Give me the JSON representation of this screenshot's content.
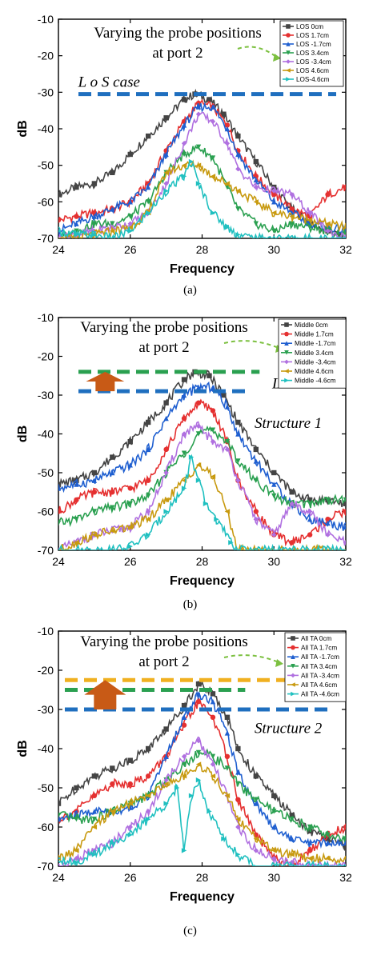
{
  "chart_data": [
    {
      "type": "line",
      "caption": "(a)",
      "xlabel": "Frequency",
      "ylabel": "dB",
      "xlim": [
        24,
        32
      ],
      "ylim": [
        -70,
        -10
      ],
      "xticks": [
        24,
        26,
        28,
        30,
        32
      ],
      "yticks": [
        -10,
        -20,
        -30,
        -40,
        -50,
        -60,
        -70
      ],
      "grid": false,
      "legend_position": "top-right",
      "annotation": "Varying the probe positions\nat port 2",
      "extra_labels": [
        "L o S  case"
      ],
      "reference_lines": [
        {
          "y": -30.5,
          "color": "#1f6fbf"
        }
      ],
      "arrow_box_y": null,
      "series": [
        {
          "name": "LOS 0cm",
          "color": "#444444",
          "marker": "square",
          "x": [
            24,
            24.5,
            25,
            25.5,
            26,
            26.5,
            27,
            27.5,
            27.8,
            28.2,
            28.6,
            29,
            29.5,
            30,
            30.5,
            31,
            31.5,
            32
          ],
          "y": [
            -58,
            -56,
            -55,
            -52,
            -47,
            -42,
            -37,
            -32,
            -30.5,
            -32,
            -36,
            -42,
            -49,
            -56,
            -62,
            -66,
            -68,
            -70
          ]
        },
        {
          "name": "LOS 1.7cm",
          "color": "#e53030",
          "marker": "circle",
          "x": [
            24,
            24.5,
            25,
            25.5,
            26,
            26.5,
            27,
            27.5,
            27.9,
            28.3,
            28.7,
            29,
            29.5,
            30,
            30.5,
            31,
            31.5,
            32
          ],
          "y": [
            -65,
            -64,
            -63,
            -62,
            -60,
            -55,
            -46,
            -38,
            -33,
            -34,
            -39,
            -46,
            -53,
            -58,
            -62,
            -64,
            -58,
            -56
          ]
        },
        {
          "name": "LOS -1.7cm",
          "color": "#1f5fd0",
          "marker": "triangle-up",
          "x": [
            24,
            24.5,
            25,
            25.5,
            26,
            26.5,
            27,
            27.5,
            27.9,
            28.3,
            28.7,
            29,
            29.5,
            30,
            30.5,
            31,
            31.5,
            32
          ],
          "y": [
            -68,
            -66,
            -64,
            -62,
            -60,
            -56,
            -47,
            -39,
            -34,
            -34,
            -40,
            -47,
            -54,
            -60,
            -63,
            -66,
            -67,
            -68
          ]
        },
        {
          "name": "LOS 3.4cm",
          "color": "#2aa050",
          "marker": "triangle-down",
          "x": [
            24,
            24.5,
            25,
            25.5,
            26,
            26.5,
            27,
            27.5,
            27.9,
            28.3,
            28.7,
            29,
            29.5,
            30,
            30.5,
            31,
            31.5,
            32
          ],
          "y": [
            -70,
            -68,
            -66,
            -66,
            -64,
            -60,
            -52,
            -47,
            -45,
            -48,
            -56,
            -62,
            -66,
            -68,
            -66,
            -67,
            -68,
            -69
          ]
        },
        {
          "name": "LOS -3.4cm",
          "color": "#b070e0",
          "marker": "diamond",
          "x": [
            24,
            24.5,
            25,
            25.5,
            26,
            26.5,
            27,
            27.5,
            27.9,
            28.3,
            28.7,
            29,
            29.5,
            30,
            30.5,
            31,
            31.5,
            32
          ],
          "y": [
            -70,
            -69,
            -68,
            -67,
            -66,
            -63,
            -55,
            -44,
            -36,
            -38,
            -44,
            -51,
            -56,
            -57,
            -58,
            -63,
            -68,
            -70
          ]
        },
        {
          "name": "LOS 4.6cm",
          "color": "#c89a10",
          "marker": "triangle-left",
          "x": [
            24,
            24.5,
            25,
            25.5,
            26,
            26.5,
            27,
            27.5,
            27.9,
            28.3,
            28.7,
            29,
            29.5,
            30,
            30.5,
            31,
            31.5,
            32
          ],
          "y": [
            -70,
            -70,
            -69,
            -68,
            -67,
            -63,
            -52,
            -50,
            -50,
            -53,
            -55,
            -57,
            -60,
            -63,
            -64,
            -65,
            -66,
            -67
          ]
        },
        {
          "name": "LOS-4.6cm",
          "color": "#20c0c0",
          "marker": "triangle-right",
          "x": [
            24,
            24.5,
            25,
            25.5,
            26,
            26.5,
            27,
            27.5,
            27.7,
            27.9,
            28.3,
            28.7,
            29,
            29.5,
            30,
            30.5,
            31,
            31.5,
            32
          ],
          "y": [
            -68,
            -69,
            -69,
            -70,
            -68,
            -63,
            -57,
            -53,
            -49,
            -55,
            -63,
            -67,
            -69,
            -70,
            -70,
            -70,
            -70,
            -70,
            -70
          ]
        }
      ]
    },
    {
      "type": "line",
      "caption": "(b)",
      "xlabel": "Frequency",
      "ylabel": "dB",
      "xlim": [
        24,
        32
      ],
      "ylim": [
        -70,
        -10
      ],
      "xticks": [
        24,
        26,
        28,
        30,
        32
      ],
      "yticks": [
        -10,
        -20,
        -30,
        -40,
        -50,
        -60,
        -70
      ],
      "grid": false,
      "legend_position": "top-right",
      "annotation": "Varying the probe positions\nat port 2",
      "extra_labels": [
        "L o S  case",
        "Structure 1"
      ],
      "reference_lines": [
        {
          "y": -24,
          "color": "#2aa050"
        },
        {
          "y": -29,
          "color": "#1f6fbf"
        }
      ],
      "arrow_box_y": [
        -29,
        -24
      ],
      "series": [
        {
          "name": "Middle 0cm",
          "color": "#444444",
          "marker": "square",
          "x": [
            24,
            24.5,
            25,
            25.5,
            26,
            26.5,
            27,
            27.5,
            27.8,
            28.2,
            28.6,
            29,
            29.5,
            30,
            30.5,
            31,
            31.5,
            32
          ],
          "y": [
            -53,
            -52,
            -50,
            -46,
            -42,
            -37,
            -32,
            -26,
            -24,
            -25,
            -30,
            -37,
            -44,
            -50,
            -55,
            -57,
            -57,
            -58
          ]
        },
        {
          "name": "Middle 1.7cm",
          "color": "#e53030",
          "marker": "circle",
          "x": [
            24,
            24.5,
            25,
            25.5,
            26,
            26.5,
            27,
            27.5,
            27.9,
            28.3,
            28.7,
            29,
            29.5,
            30,
            30.5,
            31,
            31.5,
            32
          ],
          "y": [
            -60,
            -57,
            -55,
            -55,
            -54,
            -52,
            -44,
            -36,
            -32,
            -34,
            -42,
            -52,
            -60,
            -66,
            -68,
            -66,
            -62,
            -60
          ]
        },
        {
          "name": "Middle -1.7cm",
          "color": "#1f5fd0",
          "marker": "triangle-up",
          "x": [
            24,
            24.5,
            25,
            25.5,
            26,
            26.5,
            27,
            27.5,
            27.9,
            28.3,
            28.7,
            29,
            29.5,
            30,
            30.5,
            31,
            31.5,
            32
          ],
          "y": [
            -54,
            -53,
            -52,
            -50,
            -48,
            -44,
            -36,
            -30,
            -28,
            -28,
            -33,
            -40,
            -47,
            -53,
            -58,
            -62,
            -63,
            -64
          ]
        },
        {
          "name": "Middle 3.4cm",
          "color": "#2aa050",
          "marker": "triangle-down",
          "x": [
            24,
            24.5,
            25,
            25.5,
            26,
            26.5,
            27,
            27.5,
            27.9,
            28.3,
            28.7,
            29,
            29.5,
            30,
            30.5,
            31,
            31.5,
            32
          ],
          "y": [
            -63,
            -62,
            -60,
            -59,
            -58,
            -56,
            -50,
            -45,
            -40,
            -39,
            -42,
            -47,
            -52,
            -56,
            -58,
            -58,
            -57,
            -57
          ]
        },
        {
          "name": "Middle -3.4cm",
          "color": "#b070e0",
          "marker": "diamond",
          "x": [
            24,
            24.5,
            25,
            25.5,
            26,
            26.5,
            27,
            27.5,
            27.9,
            28.3,
            28.7,
            29,
            29.5,
            30,
            30.5,
            31,
            31.5,
            32
          ],
          "y": [
            -70,
            -68,
            -66,
            -65,
            -64,
            -60,
            -50,
            -40,
            -38,
            -42,
            -44,
            -52,
            -62,
            -66,
            -58,
            -60,
            -66,
            -68
          ]
        },
        {
          "name": "Middle 4.6cm",
          "color": "#c89a10",
          "marker": "triangle-left",
          "x": [
            24,
            24.5,
            25,
            25.5,
            26,
            26.5,
            27,
            27.5,
            27.9,
            28.3,
            28.7,
            29,
            29.5,
            30,
            30.5,
            31,
            31.5,
            32
          ],
          "y": [
            -70,
            -68,
            -66,
            -65,
            -64,
            -62,
            -57,
            -52,
            -48,
            -51,
            -60,
            -70,
            -70,
            -70,
            -70,
            -70,
            -70,
            -70
          ]
        },
        {
          "name": "Middle -4.6cm",
          "color": "#20c0c0",
          "marker": "triangle-right",
          "x": [
            24,
            24.5,
            25,
            25.5,
            26,
            26.5,
            27,
            27.5,
            27.7,
            27.9,
            28.1,
            28.4,
            28.8,
            29,
            29.5,
            30,
            30.5,
            31,
            31.5,
            32
          ],
          "y": [
            -70,
            -70,
            -70,
            -70,
            -69,
            -66,
            -60,
            -54,
            -46,
            -52,
            -58,
            -62,
            -68,
            -70,
            -70,
            -70,
            -70,
            -70,
            -70,
            -70
          ]
        }
      ]
    },
    {
      "type": "line",
      "caption": "(c)",
      "xlabel": "Frequency",
      "ylabel": "dB",
      "xlim": [
        24,
        32
      ],
      "ylim": [
        -70,
        -10
      ],
      "xticks": [
        24,
        26,
        28,
        30,
        32
      ],
      "yticks": [
        -10,
        -20,
        -30,
        -40,
        -50,
        -60,
        -70
      ],
      "grid": false,
      "legend_position": "top-right",
      "annotation": "Varying the probe positions\nat port 2",
      "extra_labels": [
        "Structure 2"
      ],
      "reference_lines": [
        {
          "y": -22.5,
          "color": "#f0b020"
        },
        {
          "y": -25,
          "color": "#2aa050"
        },
        {
          "y": -30,
          "color": "#1f6fbf"
        }
      ],
      "arrow_box_y": [
        -30,
        -22.5
      ],
      "series": [
        {
          "name": "All TA 0cm",
          "color": "#444444",
          "marker": "square",
          "x": [
            24,
            24.5,
            25,
            25.5,
            26,
            26.5,
            27,
            27.5,
            27.9,
            28.3,
            28.7,
            29,
            29.5,
            30,
            30.5,
            31,
            31.5,
            32
          ],
          "y": [
            -54,
            -50,
            -47,
            -45,
            -43,
            -40,
            -35,
            -29,
            -23.5,
            -26,
            -32,
            -40,
            -47,
            -52,
            -57,
            -61,
            -63,
            -65
          ]
        },
        {
          "name": "All TA 1.7cm",
          "color": "#e53030",
          "marker": "circle",
          "x": [
            24,
            24.5,
            25,
            25.5,
            26,
            26.5,
            27,
            27.5,
            27.9,
            28.3,
            28.7,
            29,
            29.5,
            30,
            30.5,
            31,
            31.5,
            32
          ],
          "y": [
            -58,
            -56,
            -52,
            -49,
            -49,
            -47,
            -42,
            -34,
            -28,
            -32,
            -42,
            -53,
            -62,
            -68,
            -70,
            -66,
            -62,
            -60
          ]
        },
        {
          "name": "All TA -1.7cm",
          "color": "#1f5fd0",
          "marker": "triangle-up",
          "x": [
            24,
            24.5,
            25,
            25.5,
            26,
            26.5,
            27,
            27.5,
            27.9,
            28.3,
            28.7,
            29,
            29.5,
            30,
            30.5,
            31,
            31.5,
            32
          ],
          "y": [
            -58,
            -57,
            -56,
            -56,
            -55,
            -52,
            -42,
            -32,
            -26,
            -28,
            -36,
            -46,
            -54,
            -60,
            -63,
            -64,
            -64,
            -64
          ]
        },
        {
          "name": "All TA 3.4cm",
          "color": "#2aa050",
          "marker": "triangle-down",
          "x": [
            24,
            24.5,
            25,
            25.5,
            26,
            26.5,
            27,
            27.5,
            27.9,
            28.3,
            28.7,
            29,
            29.5,
            30,
            30.5,
            31,
            31.5,
            32
          ],
          "y": [
            -57,
            -58,
            -58,
            -56,
            -54,
            -52,
            -48,
            -44,
            -41,
            -42,
            -45,
            -49,
            -53,
            -56,
            -58,
            -60,
            -62,
            -63
          ]
        },
        {
          "name": "All TA -3.4cm",
          "color": "#b070e0",
          "marker": "diamond",
          "x": [
            24,
            24.5,
            25,
            25.5,
            26,
            26.5,
            27,
            27.5,
            27.9,
            28.3,
            28.7,
            29,
            29.5,
            30,
            30.5,
            31,
            31.5,
            32
          ],
          "y": [
            -70,
            -68,
            -66,
            -64,
            -60,
            -56,
            -48,
            -42,
            -38,
            -44,
            -52,
            -60,
            -66,
            -68,
            -69,
            -70,
            -70,
            -70
          ]
        },
        {
          "name": "All TA 4.6cm",
          "color": "#c89a10",
          "marker": "triangle-left",
          "x": [
            24,
            24.5,
            25,
            25.5,
            26,
            26.5,
            27,
            27.5,
            27.9,
            28.3,
            28.7,
            29,
            29.5,
            30,
            30.5,
            31,
            31.5,
            32
          ],
          "y": [
            -68,
            -66,
            -60,
            -56,
            -54,
            -52,
            -49,
            -47,
            -44,
            -47,
            -52,
            -58,
            -63,
            -66,
            -67,
            -68,
            -68,
            -68
          ]
        },
        {
          "name": "All TA -4.6cm",
          "color": "#20c0c0",
          "marker": "triangle-right",
          "x": [
            24,
            24.5,
            25,
            25.5,
            26,
            26.5,
            27,
            27.3,
            27.5,
            27.7,
            27.9,
            28.2,
            28.6,
            29,
            29.5,
            30,
            30.5,
            31,
            31.5,
            32
          ],
          "y": [
            -68,
            -69,
            -67,
            -64,
            -62,
            -58,
            -54,
            -50,
            -66,
            -52,
            -48,
            -56,
            -63,
            -67,
            -70,
            -70,
            -70,
            -70,
            -70,
            -70
          ]
        }
      ]
    }
  ]
}
